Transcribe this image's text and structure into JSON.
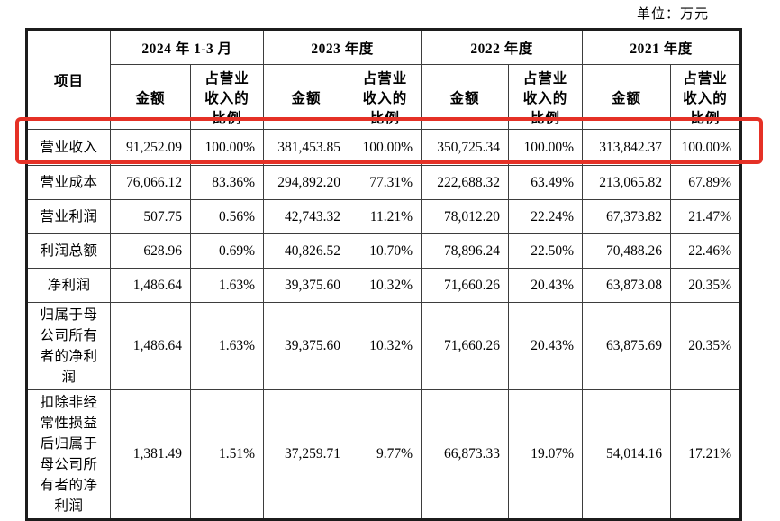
{
  "unit_label": "单位：万元",
  "table": {
    "item_header": "项目",
    "period_headers": [
      "2024 年 1-3 月",
      "2023 年度",
      "2022 年度",
      "2021 年度"
    ],
    "amount_header": "金额",
    "ratio_header": "占营业收入的比例",
    "highlight_color": "#e53126",
    "rows": [
      {
        "label": "营业收入",
        "highlighted": true,
        "values": [
          "91,252.09",
          "100.00%",
          "381,453.85",
          "100.00%",
          "350,725.34",
          "100.00%",
          "313,842.37",
          "100.00%"
        ]
      },
      {
        "label": "营业成本",
        "highlighted": false,
        "values": [
          "76,066.12",
          "83.36%",
          "294,892.20",
          "77.31%",
          "222,688.32",
          "63.49%",
          "213,065.82",
          "67.89%"
        ]
      },
      {
        "label": "营业利润",
        "highlighted": false,
        "values": [
          "507.75",
          "0.56%",
          "42,743.32",
          "11.21%",
          "78,012.20",
          "22.24%",
          "67,373.82",
          "21.47%"
        ]
      },
      {
        "label": "利润总额",
        "highlighted": false,
        "values": [
          "628.96",
          "0.69%",
          "40,826.52",
          "10.70%",
          "78,896.24",
          "22.50%",
          "70,488.26",
          "22.46%"
        ]
      },
      {
        "label": "净利润",
        "highlighted": false,
        "values": [
          "1,486.64",
          "1.63%",
          "39,375.60",
          "10.32%",
          "71,660.26",
          "20.43%",
          "63,873.08",
          "20.35%"
        ]
      },
      {
        "label": "归属于母公司所有者的净利润",
        "highlighted": false,
        "values": [
          "1,486.64",
          "1.63%",
          "39,375.60",
          "10.32%",
          "71,660.26",
          "20.43%",
          "63,875.69",
          "20.35%"
        ]
      },
      {
        "label": "扣除非经常性损益后归属于母公司所有者的净利润",
        "highlighted": false,
        "values": [
          "1,381.49",
          "1.51%",
          "37,259.71",
          "9.77%",
          "66,873.33",
          "19.07%",
          "54,014.16",
          "17.21%"
        ]
      }
    ]
  }
}
